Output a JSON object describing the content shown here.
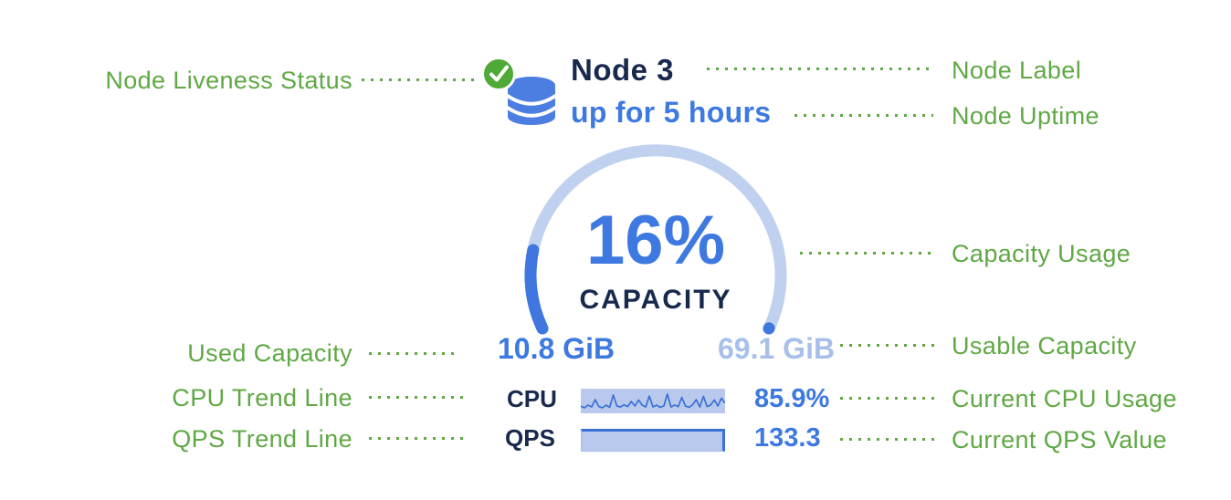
{
  "node": {
    "label": "Node 3",
    "uptime": "up for 5 hours",
    "capacity": {
      "percent_label": "16%",
      "percent_value": 16,
      "caption": "CAPACITY",
      "used": "10.8 GiB",
      "usable": "69.1 GiB"
    },
    "cpu": {
      "label": "CPU",
      "value": "85.9%",
      "trend": [
        0.25,
        0.15,
        0.3,
        0.2,
        0.6,
        0.22,
        0.15,
        0.3,
        0.18,
        0.85,
        0.25,
        0.2,
        0.32,
        0.22,
        0.5,
        0.25,
        0.58,
        0.3,
        0.2,
        0.8,
        0.2,
        0.3,
        0.18,
        0.25,
        0.9,
        0.2,
        0.3,
        0.22,
        0.72,
        0.25,
        0.18,
        0.32,
        0.6,
        0.2,
        0.78,
        0.22,
        0.3,
        0.58,
        0.25,
        0.68,
        0.4
      ]
    },
    "qps": {
      "label": "QPS",
      "value": "133.3",
      "trend": [
        1,
        1,
        1,
        1,
        1,
        1,
        1,
        1,
        1,
        1
      ]
    }
  },
  "annotations": {
    "left": [
      {
        "label": "Node Liveness Status"
      },
      {
        "label": "Used Capacity"
      },
      {
        "label": "CPU Trend Line"
      },
      {
        "label": "QPS Trend Line"
      }
    ],
    "right": [
      {
        "label": "Node Label"
      },
      {
        "label": "Node Uptime"
      },
      {
        "label": "Capacity Usage"
      },
      {
        "label": "Usable Capacity"
      },
      {
        "label": "Current CPU Usage"
      },
      {
        "label": "Current QPS Value"
      }
    ]
  },
  "colors": {
    "annotation_green": "#5fa844",
    "liveness_green": "#4fa936",
    "navy": "#17294d",
    "blue": "#3d79e0",
    "light_blue": "#a7bfeb",
    "gauge_track": "#c0d1f0",
    "gauge_fill": "#4076df",
    "spark_bg": "#b9c9ed",
    "spark_line": "#3b70d7",
    "db_icon_blue": "#4b7ee0",
    "background": "#ffffff"
  }
}
